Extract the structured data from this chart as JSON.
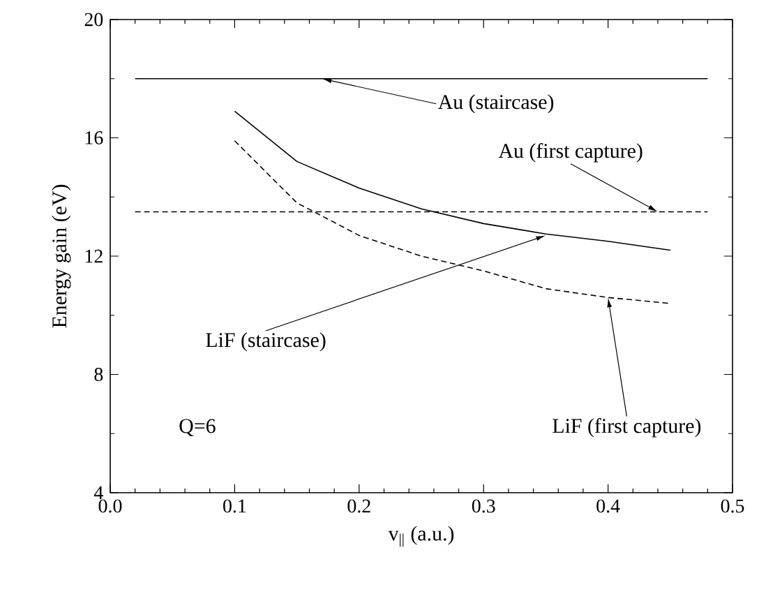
{
  "chart_data": {
    "type": "line",
    "xlabel": "v$_{||}$ (a.u.)",
    "ylabel": "Energy gain (eV)",
    "xlim": [
      0,
      0.5
    ],
    "ylim": [
      4,
      20
    ],
    "xticks": [
      {
        "value": 0,
        "label": "0.0"
      },
      0.1,
      0.2,
      0.3,
      0.4,
      0.5
    ],
    "yticks": [
      4,
      8,
      12,
      16,
      20
    ],
    "marker": "none",
    "series": [
      {
        "color": "#000000",
        "line_style": "solid",
        "x": [
          0.02,
          0.48
        ],
        "values": [
          18,
          18
        ]
      },
      {
        "color": "#000000",
        "line_style": "dashed",
        "x": [
          0.02,
          0.48
        ],
        "values": [
          13.5,
          13.5
        ]
      },
      {
        "color": "#000000",
        "line_style": "solid",
        "x": [
          0.1,
          0.15,
          0.2,
          0.25,
          0.3,
          0.35,
          0.4,
          0.45
        ],
        "values": [
          16.9,
          15.2,
          14.3,
          13.6,
          13.1,
          12.75,
          12.5,
          12.2
        ]
      },
      {
        "color": "#000000",
        "line_style": "dashed",
        "x": [
          0.1,
          0.15,
          0.2,
          0.25,
          0.3,
          0.35,
          0.4,
          0.45
        ],
        "values": [
          15.9,
          13.8,
          12.7,
          12.0,
          11.5,
          10.9,
          10.6,
          10.4
        ]
      }
    ],
    "annotations": [
      {
        "text": "Au (staircase)",
        "x": 0.17,
        "y": 18
      },
      {
        "text": "Au (first capture)",
        "x": 0.44,
        "y": 13.5
      },
      {
        "text": "LiF (staircase)",
        "x": 0.35,
        "y": 12.7
      },
      {
        "text": "LiF (first capture)",
        "x": 0.4,
        "y": 10.6
      },
      "Q=6"
    ]
  }
}
